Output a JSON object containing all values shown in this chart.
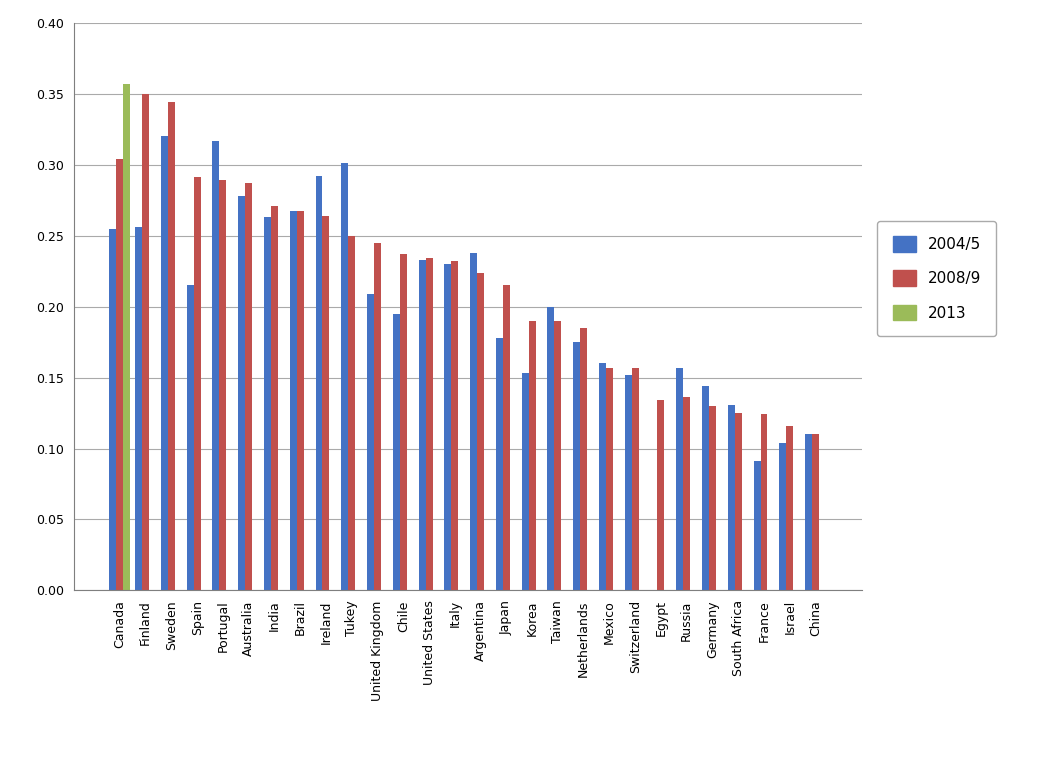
{
  "categories": [
    "Canada",
    "Finland",
    "Sweden",
    "Spain",
    "Portugal",
    "Australia",
    "India",
    "Brazil",
    "Ireland",
    "Tukey",
    "United Kingdom",
    "Chile",
    "United States",
    "Italy",
    "Argentina",
    "Japan",
    "Korea",
    "Taiwan",
    "Netherlands",
    "Mexico",
    "Switzerland",
    "Egypt",
    "Russia",
    "Germany",
    "South Africa",
    "France",
    "Israel",
    "China"
  ],
  "series": {
    "2004/5": [
      0.255,
      0.256,
      0.32,
      0.215,
      0.317,
      0.278,
      0.263,
      0.267,
      0.292,
      0.301,
      0.209,
      0.195,
      0.233,
      0.23,
      0.238,
      0.178,
      0.153,
      0.2,
      0.175,
      0.16,
      0.152,
      0.0,
      0.157,
      0.144,
      0.131,
      0.091,
      0.104,
      0.11
    ],
    "2008/9": [
      0.304,
      0.35,
      0.344,
      0.291,
      0.289,
      0.287,
      0.271,
      0.267,
      0.264,
      0.25,
      0.245,
      0.237,
      0.234,
      0.232,
      0.224,
      0.215,
      0.19,
      0.19,
      0.185,
      0.157,
      0.157,
      0.134,
      0.136,
      0.13,
      0.125,
      0.124,
      0.116,
      0.11
    ],
    "2013": [
      0.357,
      0.0,
      0.0,
      0.0,
      0.0,
      0.0,
      0.0,
      0.0,
      0.0,
      0.0,
      0.0,
      0.0,
      0.0,
      0.0,
      0.0,
      0.0,
      0.0,
      0.0,
      0.0,
      0.0,
      0.0,
      0.0,
      0.0,
      0.0,
      0.0,
      0.0,
      0.0,
      0.0
    ]
  },
  "colors": {
    "2004/5": "#4472C4",
    "2008/9": "#C0504D",
    "2013": "#9BBB59"
  },
  "ylim": [
    0.0,
    0.4
  ],
  "yticks": [
    0.0,
    0.05,
    0.1,
    0.15,
    0.2,
    0.25,
    0.3,
    0.35,
    0.4
  ],
  "legend_labels": [
    "2004/5",
    "2008/9",
    "2013"
  ],
  "figsize": [
    10.51,
    7.57
  ],
  "dpi": 100,
  "bar_width": 0.27,
  "background_color": "#FFFFFF",
  "grid_color": "#AAAAAA",
  "border_color": "#7F7F7F"
}
